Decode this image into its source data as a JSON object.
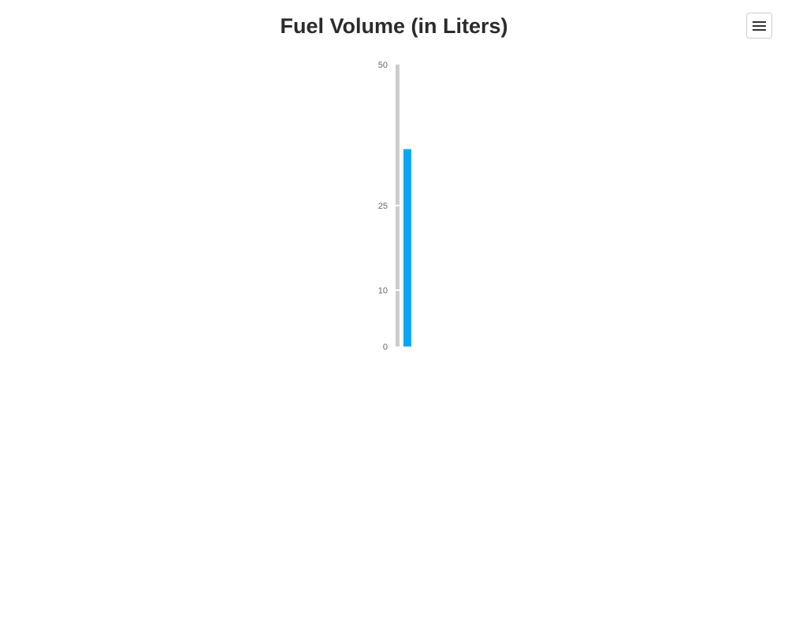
{
  "chart_data": {
    "type": "bar",
    "orientation": "vertical-linear-gauge",
    "title": "Fuel Volume (in Liters)",
    "scale": {
      "min": 0,
      "max": 50
    },
    "ticks": [
      0,
      10,
      25,
      50
    ],
    "tick_labels": [
      "0",
      "10",
      "25",
      "50"
    ],
    "values": [
      35
    ],
    "grid": false,
    "legend": "none",
    "colors": {
      "bar": "#03a9f4",
      "track": "#cccccc"
    }
  },
  "toolbar": {
    "menu_icon": "hamburger-menu-icon"
  }
}
